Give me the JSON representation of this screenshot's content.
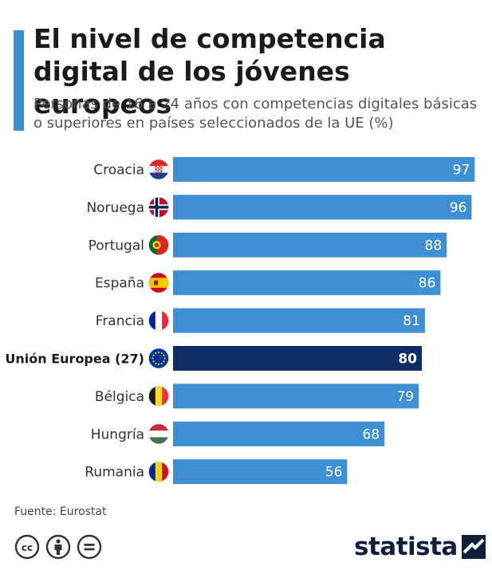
{
  "header": {
    "title": "El nivel de competencia digital de los jóvenes europeos",
    "subtitle": "Personas de 16 a 24 años con competencias digitales básicas o superiores en países seleccionados de la UE (%)"
  },
  "chart_data": {
    "type": "bar",
    "orientation": "horizontal",
    "title": "El nivel de competencia digital de los jóvenes europeos",
    "subtitle": "Personas de 16 a 24 años con competencias digitales básicas o superiores en países seleccionados de la UE (%)",
    "categories": [
      "Croacia",
      "Noruega",
      "Portugal",
      "España",
      "Francia",
      "Unión Europea (27)",
      "Bélgica",
      "Hungría",
      "Rumania"
    ],
    "values": [
      97,
      96,
      88,
      86,
      81,
      80,
      79,
      68,
      56
    ],
    "highlight": "Unión Europea (27)",
    "xlim": [
      0,
      100
    ],
    "data_labels": true,
    "grid": false,
    "legend": "none",
    "colors": {
      "bar": "#3f8fd2",
      "highlight": "#102d63",
      "label": "#ffffff"
    }
  },
  "flags": [
    {
      "country": "Croacia",
      "icon": "croatia-flag-icon"
    },
    {
      "country": "Noruega",
      "icon": "norway-flag-icon"
    },
    {
      "country": "Portugal",
      "icon": "portugal-flag-icon"
    },
    {
      "country": "España",
      "icon": "spain-flag-icon"
    },
    {
      "country": "Francia",
      "icon": "france-flag-icon"
    },
    {
      "country": "Unión Europea (27)",
      "icon": "eu-flag-icon"
    },
    {
      "country": "Bélgica",
      "icon": "belgium-flag-icon"
    },
    {
      "country": "Hungría",
      "icon": "hungary-flag-icon"
    },
    {
      "country": "Rumania",
      "icon": "romania-flag-icon"
    }
  ],
  "footer": {
    "source": "Fuente: Eurostat",
    "license_icons": [
      "cc-icon",
      "by-icon",
      "nd-icon"
    ],
    "logo": "statista"
  },
  "colors": {
    "accent": "#3f8fd2",
    "highlight": "#102d63",
    "logo": "#0f1f3a"
  }
}
